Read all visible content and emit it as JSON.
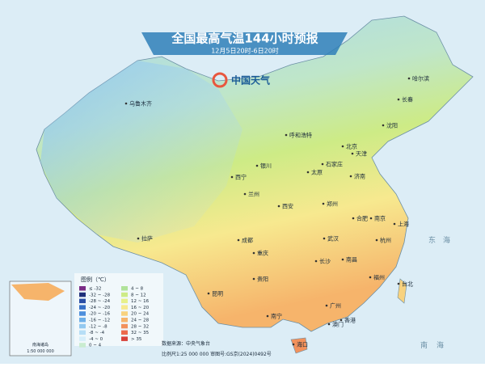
{
  "header": {
    "title": "全国最高气温144小时预报",
    "subtitle": "12月5日20时-6日20时"
  },
  "logo": "中国天气",
  "cities": [
    "哈尔滨",
    "长春",
    "沈阳",
    "乌鲁木齐",
    "呼和浩特",
    "北京",
    "天津",
    "石家庄",
    "银川",
    "太原",
    "济南",
    "西宁",
    "兰州",
    "郑州",
    "西安",
    "合肥",
    "南京",
    "上海",
    "拉萨",
    "成都",
    "武汉",
    "杭州",
    "重庆",
    "长沙",
    "南昌",
    "贵阳",
    "福州",
    "台北",
    "昆明",
    "广州",
    "南宁",
    "香港",
    "澳门",
    "海口"
  ],
  "seas": [
    "东",
    "海",
    "南",
    "海"
  ],
  "legend": {
    "title": "图例（℃）",
    "items": [
      {
        "label": "≤ -32",
        "color": "#7a2c86"
      },
      {
        "label": "-32 ~ -28",
        "color": "#1f2f7a"
      },
      {
        "label": "-28 ~ -24",
        "color": "#2a4fa6"
      },
      {
        "label": "-24 ~ -20",
        "color": "#3670c6"
      },
      {
        "label": "-20 ~ -16",
        "color": "#4d8fdc"
      },
      {
        "label": "-16 ~ -12",
        "color": "#6fb0e8"
      },
      {
        "label": "-12 ~ -8",
        "color": "#93c9f0"
      },
      {
        "label": "-8 ~ -4",
        "color": "#b6def6"
      },
      {
        "label": "-4 ~ 0",
        "color": "#d6eefa"
      },
      {
        "label": "0 ~ 4",
        "color": "#c9ecd0"
      },
      {
        "label": "4 ~ 8",
        "color": "#b0e39a"
      },
      {
        "label": "8 ~ 12",
        "color": "#cdeb86"
      },
      {
        "label": "12 ~ 16",
        "color": "#e7f08a"
      },
      {
        "label": "16 ~ 20",
        "color": "#f7e98f"
      },
      {
        "label": "20 ~ 24",
        "color": "#f8d27e"
      },
      {
        "label": "24 ~ 28",
        "color": "#f6b46b"
      },
      {
        "label": "28 ~ 32",
        "color": "#f2915b"
      },
      {
        "label": "32 ~ 35",
        "color": "#ec6a4c"
      },
      {
        "label": "> 35",
        "color": "#d8413a"
      }
    ]
  },
  "source": {
    "line1": "数据来源：中央气象台",
    "line2": "比例尺1:25 000 000   审图号:GS京(2024)0492号"
  },
  "inset": {
    "title": "南海诸岛",
    "scale": "1:50 000 000"
  }
}
